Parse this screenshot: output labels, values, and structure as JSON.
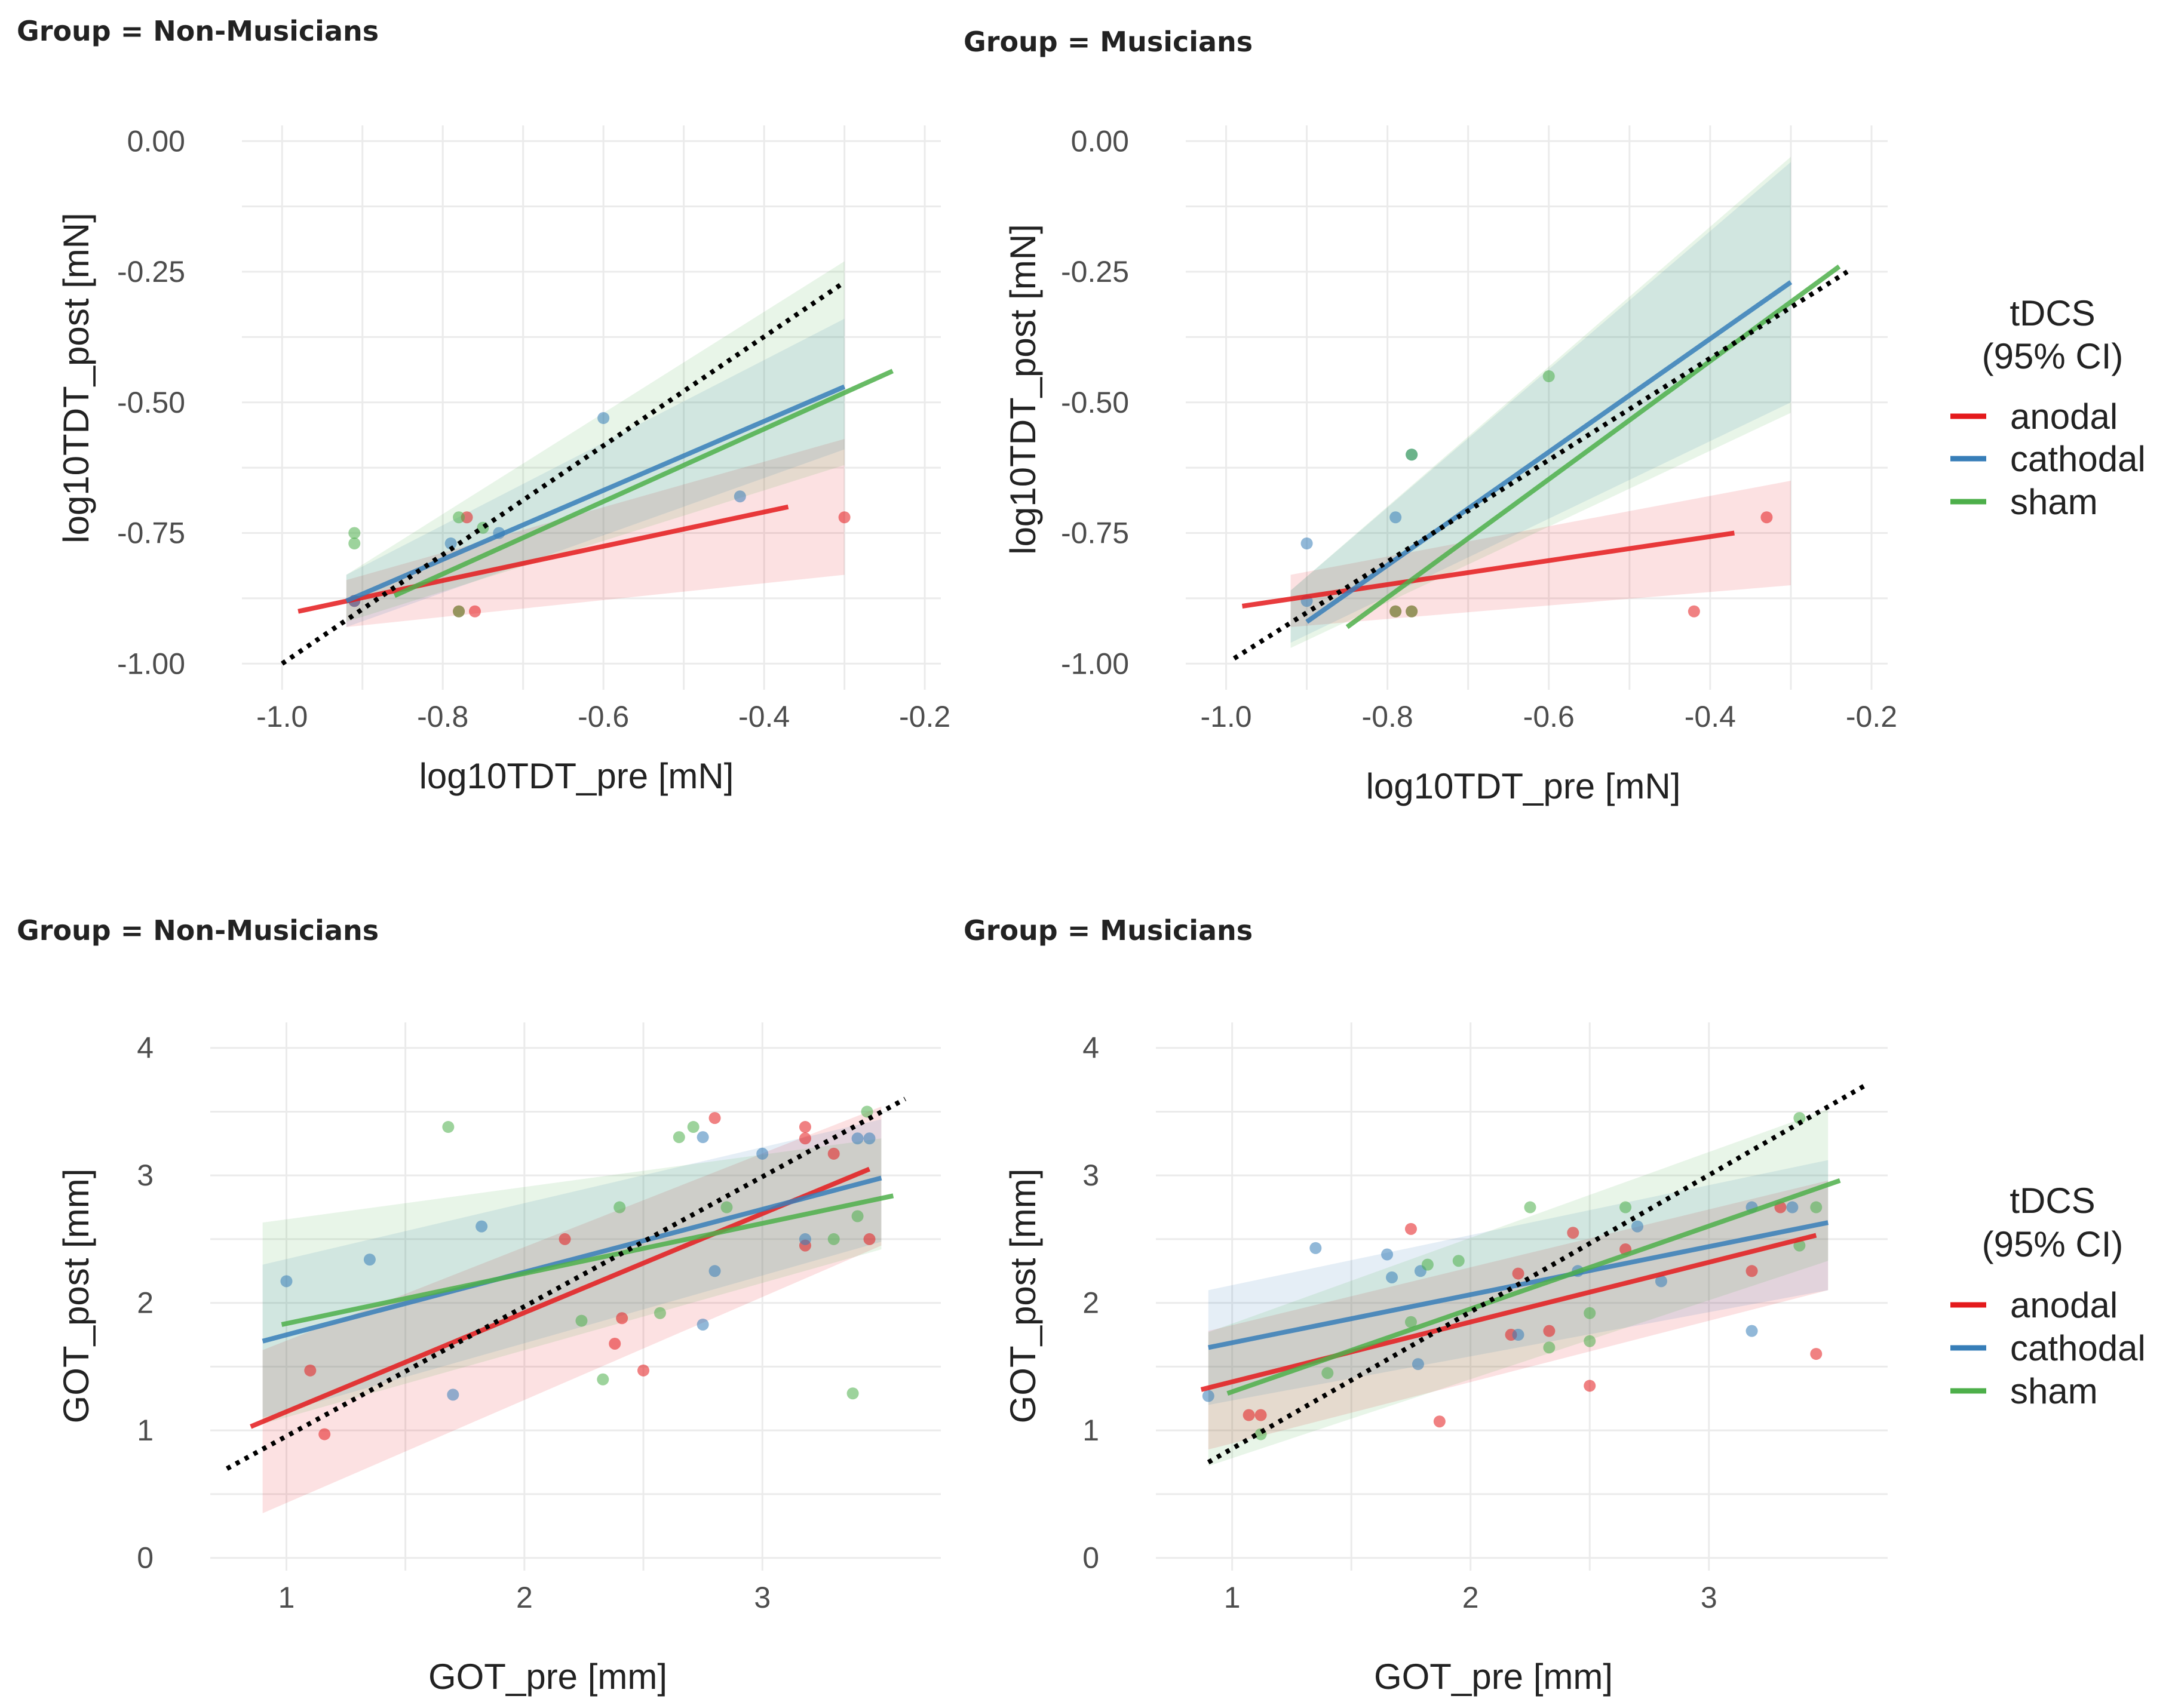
{
  "chart_data": [
    {
      "type": "scatter",
      "title": "Group = Non-Musicians",
      "xlabel": "log10TDT_pre [mN]",
      "ylabel": "log10TDT_post [mN]",
      "xlim": [
        -1.05,
        -0.18
      ],
      "ylim": [
        -1.05,
        0.03
      ],
      "xticks": [
        -1.0,
        -0.8,
        -0.6,
        -0.4,
        -0.2
      ],
      "xtick_labels": [
        "-1.0",
        "-0.8",
        "-0.6",
        "-0.4",
        "-0.2"
      ],
      "yticks": [
        0.0,
        -0.25,
        -0.5,
        -0.75,
        -1.0
      ],
      "ytick_labels": [
        "0.00",
        "-0.25",
        "-0.50",
        "-0.75",
        "-1.00"
      ],
      "identity_line": [
        [
          -1.0,
          -1.0
        ],
        [
          -0.3,
          -0.27
        ]
      ],
      "series": [
        {
          "name": "anodal",
          "points": [
            [
              -0.77,
              -0.72
            ],
            [
              -0.78,
              -0.9
            ],
            [
              -0.76,
              -0.9
            ],
            [
              -0.3,
              -0.72
            ],
            [
              -0.91,
              -0.88
            ]
          ],
          "fit": [
            [
              -0.98,
              -0.9
            ],
            [
              -0.37,
              -0.7
            ]
          ],
          "ci": {
            "x": [
              -0.92,
              -0.3
            ],
            "lower": [
              -0.93,
              -0.83
            ],
            "upper": [
              -0.84,
              -0.57
            ]
          }
        },
        {
          "name": "cathodal",
          "points": [
            [
              -0.6,
              -0.53
            ],
            [
              -0.43,
              -0.68
            ],
            [
              -0.73,
              -0.75
            ],
            [
              -0.91,
              -0.88
            ],
            [
              -0.79,
              -0.77
            ]
          ],
          "fit": [
            [
              -0.92,
              -0.88
            ],
            [
              -0.3,
              -0.47
            ]
          ],
          "ci": {
            "x": [
              -0.92,
              -0.3
            ],
            "lower": [
              -0.93,
              -0.59
            ],
            "upper": [
              -0.83,
              -0.34
            ]
          }
        },
        {
          "name": "sham",
          "points": [
            [
              -0.91,
              -0.75
            ],
            [
              -0.91,
              -0.77
            ],
            [
              -0.78,
              -0.72
            ],
            [
              -0.78,
              -0.9
            ],
            [
              -0.75,
              -0.74
            ]
          ],
          "fit": [
            [
              -0.86,
              -0.87
            ],
            [
              -0.24,
              -0.44
            ]
          ],
          "ci": {
            "x": [
              -0.92,
              -0.3
            ],
            "lower": [
              -0.92,
              -0.62
            ],
            "upper": [
              -0.83,
              -0.23
            ]
          }
        }
      ]
    },
    {
      "type": "scatter",
      "title": "Group = Musicians",
      "xlabel": "log10TDT_pre [mN]",
      "ylabel": "log10TDT_post [mN]",
      "xlim": [
        -1.05,
        -0.18
      ],
      "ylim": [
        -1.05,
        0.03
      ],
      "xticks": [
        -1.0,
        -0.8,
        -0.6,
        -0.4,
        -0.2
      ],
      "xtick_labels": [
        "-1.0",
        "-0.8",
        "-0.6",
        "-0.4",
        "-0.2"
      ],
      "yticks": [
        0.0,
        -0.25,
        -0.5,
        -0.75,
        -1.0
      ],
      "ytick_labels": [
        "0.00",
        "-0.25",
        "-0.50",
        "-0.75",
        "-1.00"
      ],
      "identity_line": [
        [
          -0.99,
          -0.99
        ],
        [
          -0.23,
          -0.25
        ]
      ],
      "series": [
        {
          "name": "anodal",
          "points": [
            [
              -0.33,
              -0.72
            ],
            [
              -0.42,
              -0.9
            ],
            [
              -0.77,
              -0.9
            ],
            [
              -0.79,
              -0.9
            ]
          ],
          "fit": [
            [
              -0.98,
              -0.89
            ],
            [
              -0.37,
              -0.75
            ]
          ],
          "ci": {
            "x": [
              -0.92,
              -0.3
            ],
            "lower": [
              -0.93,
              -0.85
            ],
            "upper": [
              -0.83,
              -0.65
            ]
          }
        },
        {
          "name": "cathodal",
          "points": [
            [
              -0.9,
              -0.77
            ],
            [
              -0.79,
              -0.72
            ],
            [
              -0.77,
              -0.6
            ],
            [
              -0.9,
              -0.88
            ]
          ],
          "fit": [
            [
              -0.9,
              -0.92
            ],
            [
              -0.3,
              -0.27
            ]
          ],
          "ci": {
            "x": [
              -0.92,
              -0.3
            ],
            "lower": [
              -0.96,
              -0.5
            ],
            "upper": [
              -0.86,
              -0.04
            ]
          }
        },
        {
          "name": "sham",
          "points": [
            [
              -0.6,
              -0.45
            ],
            [
              -0.79,
              -0.9
            ],
            [
              -0.77,
              -0.9
            ],
            [
              -0.77,
              -0.6
            ]
          ],
          "fit": [
            [
              -0.85,
              -0.93
            ],
            [
              -0.24,
              -0.24
            ]
          ],
          "ci": {
            "x": [
              -0.92,
              -0.3
            ],
            "lower": [
              -0.97,
              -0.52
            ],
            "upper": [
              -0.86,
              -0.03
            ]
          }
        }
      ]
    },
    {
      "type": "scatter",
      "title": "Group = Non-Musicians",
      "xlabel": "GOT_pre [mm]",
      "ylabel": "GOT_post [mm]",
      "xlim": [
        0.68,
        3.75
      ],
      "ylim": [
        -0.1,
        4.2
      ],
      "xticks": [
        1,
        2,
        3
      ],
      "xtick_labels": [
        "1",
        "2",
        "3"
      ],
      "yticks": [
        0,
        1,
        2,
        3,
        4
      ],
      "ytick_labels": [
        "0",
        "1",
        "2",
        "3",
        "4"
      ],
      "identity_line": [
        [
          0.75,
          0.7
        ],
        [
          3.6,
          3.6
        ]
      ],
      "series": [
        {
          "name": "anodal",
          "points": [
            [
              1.1,
              1.47
            ],
            [
              1.16,
              0.97
            ],
            [
              2.17,
              2.5
            ],
            [
              2.38,
              1.68
            ],
            [
              2.41,
              1.88
            ],
            [
              2.5,
              1.47
            ],
            [
              2.8,
              3.45
            ],
            [
              3.18,
              3.38
            ],
            [
              3.18,
              3.29
            ],
            [
              3.18,
              2.45
            ],
            [
              3.3,
              3.17
            ],
            [
              3.45,
              2.5
            ]
          ],
          "fit": [
            [
              0.85,
              1.03
            ],
            [
              3.45,
              3.05
            ]
          ],
          "ci": {
            "x": [
              0.9,
              3.5
            ],
            "lower": [
              0.35,
              2.45
            ],
            "upper": [
              1.63,
              3.54
            ]
          }
        },
        {
          "name": "cathodal",
          "points": [
            [
              1.0,
              2.17
            ],
            [
              1.35,
              2.34
            ],
            [
              1.7,
              1.28
            ],
            [
              1.82,
              2.6
            ],
            [
              2.75,
              1.83
            ],
            [
              2.75,
              3.3
            ],
            [
              2.8,
              2.25
            ],
            [
              3.0,
              3.17
            ],
            [
              3.18,
              2.5
            ],
            [
              3.4,
              3.29
            ],
            [
              3.45,
              3.29
            ]
          ],
          "fit": [
            [
              0.9,
              1.7
            ],
            [
              3.5,
              2.98
            ]
          ],
          "ci": {
            "x": [
              0.9,
              3.5
            ],
            "lower": [
              1.1,
              2.48
            ],
            "upper": [
              2.3,
              3.44
            ]
          }
        },
        {
          "name": "sham",
          "points": [
            [
              1.68,
              3.38
            ],
            [
              2.24,
              1.86
            ],
            [
              2.33,
              1.4
            ],
            [
              2.4,
              2.75
            ],
            [
              2.57,
              1.92
            ],
            [
              2.65,
              3.3
            ],
            [
              2.71,
              3.38
            ],
            [
              2.85,
              2.75
            ],
            [
              3.3,
              2.5
            ],
            [
              3.38,
              1.29
            ],
            [
              3.44,
              3.5
            ],
            [
              3.4,
              2.68
            ]
          ],
          "fit": [
            [
              0.98,
              1.83
            ],
            [
              3.55,
              2.84
            ]
          ],
          "ci": {
            "x": [
              0.9,
              3.5
            ],
            "lower": [
              1.05,
              2.42
            ],
            "upper": [
              2.63,
              3.29
            ]
          }
        }
      ]
    },
    {
      "type": "scatter",
      "title": "Group = Musicians",
      "xlabel": "GOT_pre [mm]",
      "ylabel": "GOT_post [mm]",
      "xlim": [
        0.68,
        3.75
      ],
      "ylim": [
        -0.1,
        4.2
      ],
      "xticks": [
        1,
        2,
        3
      ],
      "xtick_labels": [
        "1",
        "2",
        "3"
      ],
      "yticks": [
        0,
        1,
        2,
        3,
        4
      ],
      "ytick_labels": [
        "0",
        "1",
        "2",
        "3",
        "4"
      ],
      "identity_line": [
        [
          0.9,
          0.75
        ],
        [
          3.65,
          3.7
        ]
      ],
      "series": [
        {
          "name": "anodal",
          "points": [
            [
              1.07,
              1.12
            ],
            [
              1.12,
              1.12
            ],
            [
              1.75,
              2.58
            ],
            [
              1.87,
              1.07
            ],
            [
              2.17,
              1.75
            ],
            [
              2.2,
              2.23
            ],
            [
              2.33,
              1.78
            ],
            [
              2.43,
              2.55
            ],
            [
              2.5,
              1.35
            ],
            [
              2.65,
              2.42
            ],
            [
              3.18,
              2.25
            ],
            [
              3.3,
              2.75
            ],
            [
              3.45,
              1.6
            ]
          ],
          "fit": [
            [
              0.87,
              1.32
            ],
            [
              3.45,
              2.53
            ]
          ],
          "ci": {
            "x": [
              0.9,
              3.5
            ],
            "lower": [
              0.85,
              2.1
            ],
            "upper": [
              1.78,
              2.96
            ]
          }
        },
        {
          "name": "cathodal",
          "points": [
            [
              0.9,
              1.27
            ],
            [
              1.35,
              2.43
            ],
            [
              1.65,
              2.38
            ],
            [
              1.67,
              2.2
            ],
            [
              1.78,
              1.52
            ],
            [
              1.79,
              2.25
            ],
            [
              2.2,
              1.75
            ],
            [
              2.45,
              2.25
            ],
            [
              2.7,
              2.6
            ],
            [
              2.8,
              2.17
            ],
            [
              3.18,
              1.78
            ],
            [
              3.18,
              2.75
            ],
            [
              3.35,
              2.75
            ]
          ],
          "fit": [
            [
              0.9,
              1.65
            ],
            [
              3.5,
              2.63
            ]
          ],
          "ci": {
            "x": [
              0.9,
              3.5
            ],
            "lower": [
              1.2,
              2.1
            ],
            "upper": [
              2.1,
              3.12
            ]
          }
        },
        {
          "name": "sham",
          "points": [
            [
              1.12,
              0.97
            ],
            [
              1.4,
              1.45
            ],
            [
              1.75,
              1.85
            ],
            [
              1.82,
              2.3
            ],
            [
              1.95,
              2.33
            ],
            [
              2.25,
              2.75
            ],
            [
              2.33,
              1.65
            ],
            [
              2.5,
              1.7
            ],
            [
              2.5,
              1.92
            ],
            [
              2.65,
              2.75
            ],
            [
              3.38,
              3.45
            ],
            [
              3.38,
              2.45
            ],
            [
              3.45,
              2.75
            ]
          ],
          "fit": [
            [
              0.98,
              1.29
            ],
            [
              3.55,
              2.96
            ]
          ],
          "ci": {
            "x": [
              0.9,
              3.5
            ],
            "lower": [
              0.72,
              2.33
            ],
            "upper": [
              1.77,
              3.52
            ]
          }
        }
      ]
    }
  ],
  "legend": {
    "title_line1": "tDCS",
    "title_line2": "(95% CI)",
    "items": [
      {
        "label": "anodal",
        "color": "#e41a1c"
      },
      {
        "label": "cathodal",
        "color": "#377eb8"
      },
      {
        "label": "sham",
        "color": "#4daf4a"
      }
    ]
  },
  "colors": {
    "anodal": "#e41a1c",
    "cathodal": "#377eb8",
    "sham": "#4daf4a"
  }
}
